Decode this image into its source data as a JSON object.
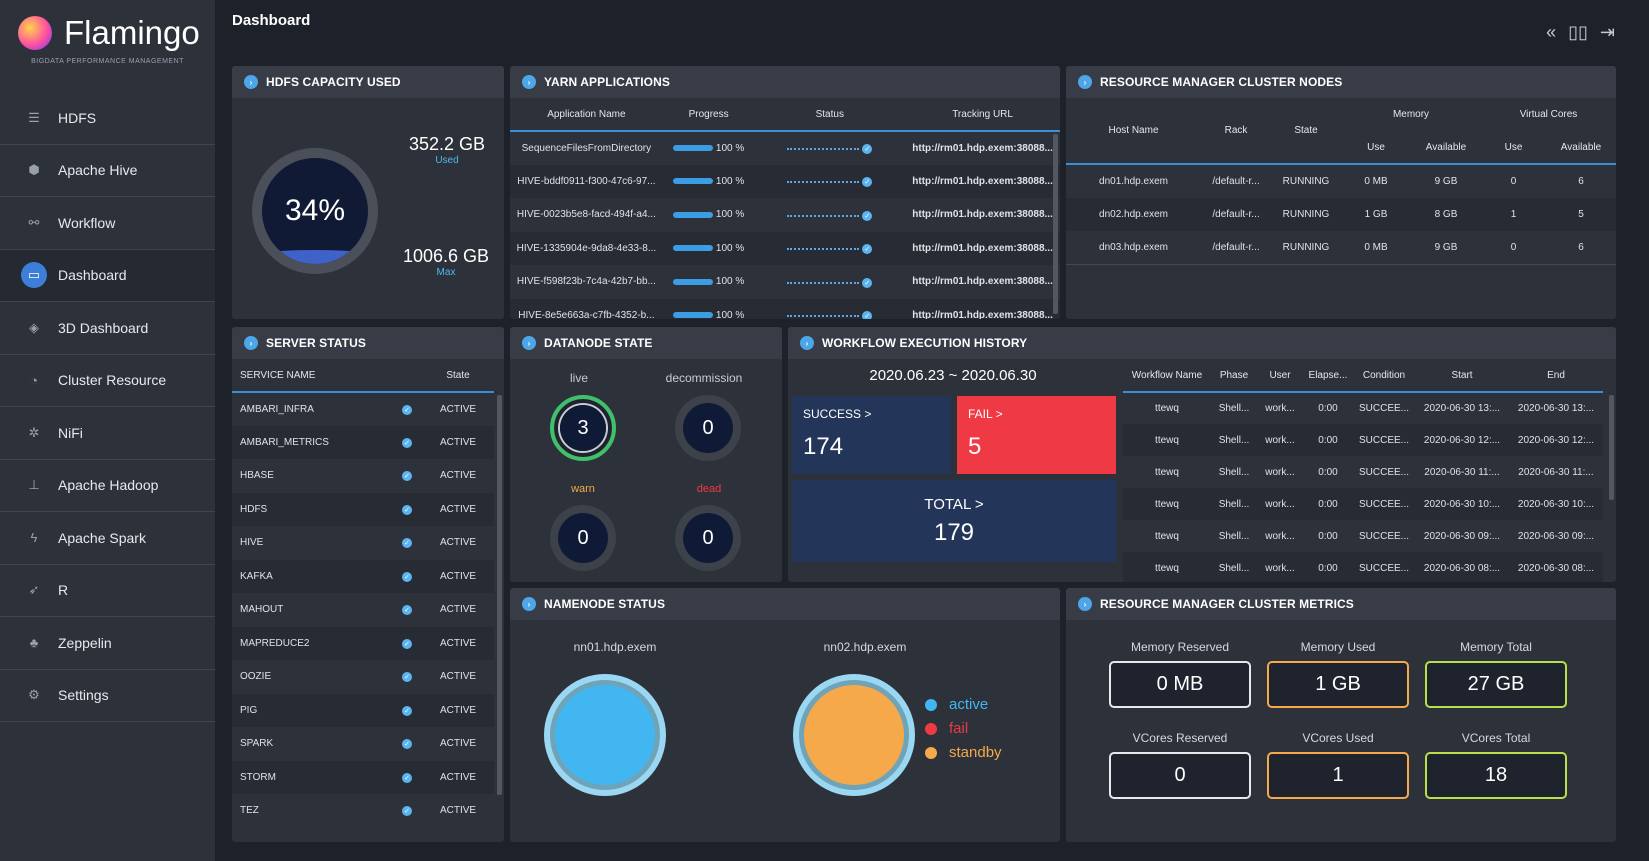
{
  "app": {
    "name": "Flamingo",
    "subtitle": "BIGDATA PERFORMANCE MANAGEMENT",
    "page_title": "Dashboard"
  },
  "sidebar": {
    "items": [
      {
        "label": "HDFS",
        "icon": "list-icon"
      },
      {
        "label": "Apache Hive",
        "icon": "hive-icon"
      },
      {
        "label": "Workflow",
        "icon": "share-icon"
      },
      {
        "label": "Dashboard",
        "icon": "monitor-icon"
      },
      {
        "label": "3D Dashboard",
        "icon": "cube-icon"
      },
      {
        "label": "Cluster Resource",
        "icon": "gauge-icon"
      },
      {
        "label": "NiFi",
        "icon": "nifi-icon"
      },
      {
        "label": "Apache Hadoop",
        "icon": "sitemap-icon"
      },
      {
        "label": "Apache Spark",
        "icon": "bolt-icon"
      },
      {
        "label": "R",
        "icon": "rocket-icon"
      },
      {
        "label": "Zeppelin",
        "icon": "zeppelin-icon"
      },
      {
        "label": "Settings",
        "icon": "gear-icon"
      }
    ]
  },
  "hdfs": {
    "title": "HDFS CAPACITY USED",
    "percent": "34%",
    "fill_fraction": 0.34,
    "used_value": "352.2 GB",
    "used_label": "Used",
    "max_value": "1006.6 GB",
    "max_label": "Max"
  },
  "yarn": {
    "title": "YARN APPLICATIONS",
    "headers": [
      "Application Name",
      "Progress",
      "Status",
      "Tracking URL"
    ],
    "rows": [
      {
        "name": "SequenceFilesFromDirectory",
        "progress": "100 %",
        "url": "http://rm01.hdp.exem:38088..."
      },
      {
        "name": "HIVE-bddf0911-f300-47c6-97...",
        "progress": "100 %",
        "url": "http://rm01.hdp.exem:38088..."
      },
      {
        "name": "HIVE-0023b5e8-facd-494f-a4...",
        "progress": "100 %",
        "url": "http://rm01.hdp.exem:38088..."
      },
      {
        "name": "HIVE-1335904e-9da8-4e33-8...",
        "progress": "100 %",
        "url": "http://rm01.hdp.exem:38088..."
      },
      {
        "name": "HIVE-f598f23b-7c4a-42b7-bb...",
        "progress": "100 %",
        "url": "http://rm01.hdp.exem:38088..."
      },
      {
        "name": "HIVE-8e5e663a-c7fb-4352-b...",
        "progress": "100 %",
        "url": "http://rm01.hdp.exem:38088..."
      }
    ]
  },
  "rmnodes": {
    "title": "RESOURCE MANAGER CLUSTER NODES",
    "headers": {
      "host": "Host Name",
      "rack": "Rack",
      "state": "State",
      "memory": "Memory",
      "vcores": "Virtual Cores",
      "use": "Use",
      "available": "Available"
    },
    "rows": [
      {
        "host": "dn01.hdp.exem",
        "rack": "/default-r...",
        "state": "RUNNING",
        "mem_use": "0 MB",
        "mem_avail": "9 GB",
        "vc_use": "0",
        "vc_avail": "6"
      },
      {
        "host": "dn02.hdp.exem",
        "rack": "/default-r...",
        "state": "RUNNING",
        "mem_use": "1 GB",
        "mem_avail": "8 GB",
        "vc_use": "1",
        "vc_avail": "5"
      },
      {
        "host": "dn03.hdp.exem",
        "rack": "/default-r...",
        "state": "RUNNING",
        "mem_use": "0 MB",
        "mem_avail": "9 GB",
        "vc_use": "0",
        "vc_avail": "6"
      }
    ]
  },
  "server": {
    "title": "SERVER STATUS",
    "headers": [
      "SERVICE NAME",
      "State"
    ],
    "rows": [
      {
        "name": "AMBARI_INFRA",
        "state": "ACTIVE"
      },
      {
        "name": "AMBARI_METRICS",
        "state": "ACTIVE"
      },
      {
        "name": "HBASE",
        "state": "ACTIVE"
      },
      {
        "name": "HDFS",
        "state": "ACTIVE"
      },
      {
        "name": "HIVE",
        "state": "ACTIVE"
      },
      {
        "name": "KAFKA",
        "state": "ACTIVE"
      },
      {
        "name": "MAHOUT",
        "state": "ACTIVE"
      },
      {
        "name": "MAPREDUCE2",
        "state": "ACTIVE"
      },
      {
        "name": "OOZIE",
        "state": "ACTIVE"
      },
      {
        "name": "PIG",
        "state": "ACTIVE"
      },
      {
        "name": "SPARK",
        "state": "ACTIVE"
      },
      {
        "name": "STORM",
        "state": "ACTIVE"
      },
      {
        "name": "TEZ",
        "state": "ACTIVE"
      }
    ]
  },
  "datanode": {
    "title": "DATANODE STATE",
    "live_label": "live",
    "live": "3",
    "decom_label": "decommission",
    "decom": "0",
    "warn_label": "warn",
    "warn": "0",
    "dead_label": "dead",
    "dead": "0"
  },
  "workflow": {
    "title": "WORKFLOW EXECUTION HISTORY",
    "range": "2020.06.23 ~ 2020.06.30",
    "success_label": "SUCCESS >",
    "success": "174",
    "fail_label": "FAIL >",
    "fail": "5",
    "total_label": "TOTAL >",
    "total": "179",
    "headers": [
      "Workflow Name",
      "Phase",
      "User",
      "Elapse...",
      "Condition",
      "Start",
      "End"
    ],
    "rows": [
      {
        "name": "ttewq",
        "phase": "Shell...",
        "user": "work...",
        "elapse": "0:00",
        "cond": "SUCCEE...",
        "start": "2020-06-30 13:...",
        "end": "2020-06-30 13:..."
      },
      {
        "name": "ttewq",
        "phase": "Shell...",
        "user": "work...",
        "elapse": "0:00",
        "cond": "SUCCEE...",
        "start": "2020-06-30 12:...",
        "end": "2020-06-30 12:..."
      },
      {
        "name": "ttewq",
        "phase": "Shell...",
        "user": "work...",
        "elapse": "0:00",
        "cond": "SUCCEE...",
        "start": "2020-06-30 11:...",
        "end": "2020-06-30 11:..."
      },
      {
        "name": "ttewq",
        "phase": "Shell...",
        "user": "work...",
        "elapse": "0:00",
        "cond": "SUCCEE...",
        "start": "2020-06-30 10:...",
        "end": "2020-06-30 10:..."
      },
      {
        "name": "ttewq",
        "phase": "Shell...",
        "user": "work...",
        "elapse": "0:00",
        "cond": "SUCCEE...",
        "start": "2020-06-30 09:...",
        "end": "2020-06-30 09:..."
      },
      {
        "name": "ttewq",
        "phase": "Shell...",
        "user": "work...",
        "elapse": "0:00",
        "cond": "SUCCEE...",
        "start": "2020-06-30 08:...",
        "end": "2020-06-30 08:..."
      }
    ]
  },
  "namenode": {
    "title": "NAMENODE STATUS",
    "nn1": "nn01.hdp.exem",
    "nn2": "nn02.hdp.exem",
    "legend": [
      {
        "label": "active",
        "color": "#42b6f0"
      },
      {
        "label": "fail",
        "color": "#ef3a45"
      },
      {
        "label": "standby",
        "color": "#f5a94a"
      }
    ]
  },
  "rmmetrics": {
    "title": "RESOURCE MANAGER CLUSTER METRICS",
    "items": [
      {
        "label": "Memory Reserved",
        "value": "0 MB",
        "color": "#e6e8ec"
      },
      {
        "label": "Memory Used",
        "value": "1 GB",
        "color": "#f5a94a"
      },
      {
        "label": "Memory Total",
        "value": "27 GB",
        "color": "#b8e04a"
      },
      {
        "label": "VCores Reserved",
        "value": "0",
        "color": "#e6e8ec"
      },
      {
        "label": "VCores Used",
        "value": "1",
        "color": "#f5a94a"
      },
      {
        "label": "VCores Total",
        "value": "18",
        "color": "#b8e04a"
      }
    ]
  }
}
